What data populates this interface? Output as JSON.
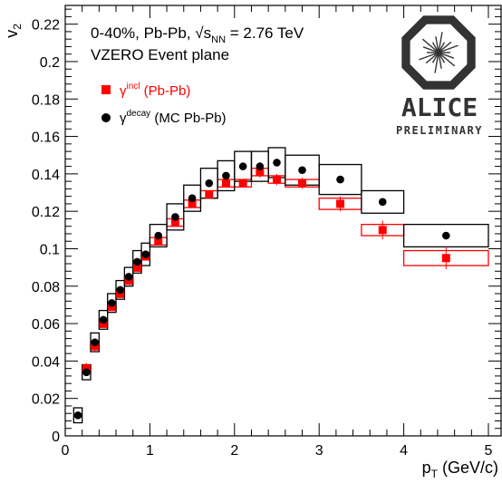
{
  "colors": {
    "inclusive": "#ff0000",
    "decay": "#000000",
    "axis": "#000000",
    "logo": "#333333"
  },
  "annotations": {
    "line1_prefix": "0-40%, Pb-Pb, √s",
    "line1_sub": "NN",
    "line1_suffix": " = 2.76 TeV",
    "line2": "VZERO Event plane"
  },
  "logo": {
    "name": "ALICE",
    "tag": "PRELIMINARY",
    "icon": "alice-logo-icon"
  },
  "chart_data": {
    "type": "scatter",
    "xlabel": {
      "main": "p",
      "sub": "T",
      "unit": " (GeV/c)"
    },
    "ylabel": {
      "main": "v",
      "sub": "2"
    },
    "xlim": [
      0,
      5.15
    ],
    "ylim": [
      0,
      0.23
    ],
    "x_ticks": [
      0,
      1,
      2,
      3,
      4,
      5
    ],
    "x_tick_labels": [
      "0",
      "1",
      "2",
      "3",
      "4",
      "5"
    ],
    "y_ticks": [
      0,
      0.02,
      0.04,
      0.06,
      0.08,
      0.1,
      0.12,
      0.14,
      0.16,
      0.18,
      0.2,
      0.22
    ],
    "y_tick_labels": [
      "0",
      "0.02",
      "0.04",
      "0.06",
      "0.08",
      "0.1",
      "0.12",
      "0.14",
      "0.16",
      "0.18",
      "0.2",
      "0.22"
    ],
    "grid": false,
    "legend_position": "top-left",
    "series": [
      {
        "name_main": "γ",
        "name_sup": "incl",
        "name_suffix": " (Pb-Pb)",
        "marker": "square",
        "color": "#ff0000",
        "points": [
          {
            "x": 0.25,
            "y": 0.036,
            "ex": 0.05,
            "ey": 0.003,
            "sy": 0.002
          },
          {
            "x": 0.35,
            "y": 0.048,
            "ex": 0.05,
            "ey": 0.003,
            "sy": 0.002
          },
          {
            "x": 0.45,
            "y": 0.06,
            "ex": 0.05,
            "ey": 0.002,
            "sy": 0.002
          },
          {
            "x": 0.55,
            "y": 0.069,
            "ex": 0.05,
            "ey": 0.002,
            "sy": 0.002
          },
          {
            "x": 0.65,
            "y": 0.076,
            "ex": 0.05,
            "ey": 0.002,
            "sy": 0.002
          },
          {
            "x": 0.75,
            "y": 0.083,
            "ex": 0.05,
            "ey": 0.002,
            "sy": 0.002
          },
          {
            "x": 0.85,
            "y": 0.09,
            "ex": 0.05,
            "ey": 0.002,
            "sy": 0.002
          },
          {
            "x": 0.95,
            "y": 0.096,
            "ex": 0.05,
            "ey": 0.002,
            "sy": 0.002
          },
          {
            "x": 1.1,
            "y": 0.104,
            "ex": 0.1,
            "ey": 0.002,
            "sy": 0.002
          },
          {
            "x": 1.3,
            "y": 0.114,
            "ex": 0.1,
            "ey": 0.002,
            "sy": 0.002
          },
          {
            "x": 1.5,
            "y": 0.124,
            "ex": 0.1,
            "ey": 0.002,
            "sy": 0.002
          },
          {
            "x": 1.7,
            "y": 0.129,
            "ex": 0.1,
            "ey": 0.002,
            "sy": 0.002
          },
          {
            "x": 1.9,
            "y": 0.135,
            "ex": 0.1,
            "ey": 0.002,
            "sy": 0.002
          },
          {
            "x": 2.1,
            "y": 0.135,
            "ex": 0.1,
            "ey": 0.002,
            "sy": 0.002
          },
          {
            "x": 2.3,
            "y": 0.141,
            "ex": 0.1,
            "ey": 0.003,
            "sy": 0.002
          },
          {
            "x": 2.5,
            "y": 0.137,
            "ex": 0.1,
            "ey": 0.003,
            "sy": 0.002
          },
          {
            "x": 2.8,
            "y": 0.135,
            "ex": 0.2,
            "ey": 0.003,
            "sy": 0.002
          },
          {
            "x": 3.25,
            "y": 0.124,
            "ex": 0.25,
            "ey": 0.004,
            "sy": 0.003
          },
          {
            "x": 3.75,
            "y": 0.11,
            "ex": 0.25,
            "ey": 0.005,
            "sy": 0.003
          },
          {
            "x": 4.5,
            "y": 0.095,
            "ex": 0.5,
            "ey": 0.006,
            "sy": 0.004
          }
        ]
      },
      {
        "name_main": "γ",
        "name_sup": "decay",
        "name_suffix": " (MC Pb-Pb)",
        "marker": "circle",
        "color": "#000000",
        "points": [
          {
            "x": 0.15,
            "y": 0.011,
            "ex": 0.05,
            "sy": 0.004
          },
          {
            "x": 0.25,
            "y": 0.034,
            "ex": 0.05,
            "sy": 0.004
          },
          {
            "x": 0.35,
            "y": 0.05,
            "ex": 0.05,
            "sy": 0.005
          },
          {
            "x": 0.45,
            "y": 0.062,
            "ex": 0.05,
            "sy": 0.005
          },
          {
            "x": 0.55,
            "y": 0.071,
            "ex": 0.05,
            "sy": 0.005
          },
          {
            "x": 0.65,
            "y": 0.078,
            "ex": 0.05,
            "sy": 0.005
          },
          {
            "x": 0.75,
            "y": 0.085,
            "ex": 0.05,
            "sy": 0.005
          },
          {
            "x": 0.85,
            "y": 0.093,
            "ex": 0.05,
            "sy": 0.006
          },
          {
            "x": 0.95,
            "y": 0.097,
            "ex": 0.05,
            "sy": 0.006
          },
          {
            "x": 1.1,
            "y": 0.107,
            "ex": 0.1,
            "sy": 0.006
          },
          {
            "x": 1.3,
            "y": 0.117,
            "ex": 0.1,
            "sy": 0.007
          },
          {
            "x": 1.5,
            "y": 0.127,
            "ex": 0.1,
            "sy": 0.007
          },
          {
            "x": 1.7,
            "y": 0.135,
            "ex": 0.1,
            "sy": 0.008
          },
          {
            "x": 1.9,
            "y": 0.139,
            "ex": 0.1,
            "sy": 0.008
          },
          {
            "x": 2.1,
            "y": 0.144,
            "ex": 0.1,
            "sy": 0.008
          },
          {
            "x": 2.3,
            "y": 0.144,
            "ex": 0.1,
            "sy": 0.008
          },
          {
            "x": 2.5,
            "y": 0.146,
            "ex": 0.1,
            "sy": 0.008
          },
          {
            "x": 2.8,
            "y": 0.142,
            "ex": 0.2,
            "sy": 0.008
          },
          {
            "x": 3.25,
            "y": 0.137,
            "ex": 0.25,
            "sy": 0.008
          },
          {
            "x": 3.75,
            "y": 0.125,
            "ex": 0.25,
            "sy": 0.006
          },
          {
            "x": 4.5,
            "y": 0.107,
            "ex": 0.5,
            "sy": 0.006
          }
        ]
      }
    ]
  }
}
